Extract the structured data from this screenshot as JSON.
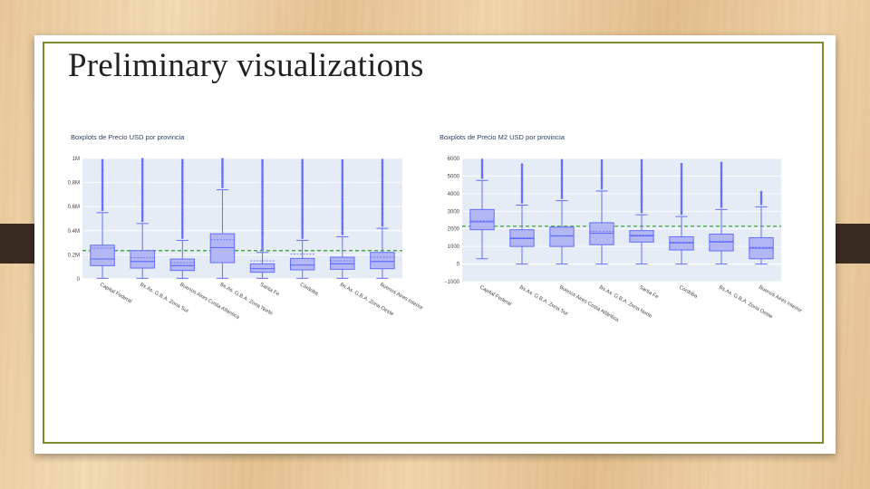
{
  "slide": {
    "title": "Preliminary visualizations"
  },
  "colors": {
    "box_fill": "#b3b8f5",
    "box_line": "#636efa",
    "plot_bg": "#e5ecf6",
    "mean_line": "#2ca02c",
    "frame": "#7f8a2d"
  },
  "chart_data": [
    {
      "type": "box",
      "title": "Boxplots de Precio USD por provincia",
      "xlabel": "",
      "ylabel": "",
      "ylim": [
        0,
        1000000
      ],
      "y_ticks": [
        0,
        200000,
        400000,
        600000,
        800000,
        1000000
      ],
      "y_tick_labels": [
        "0",
        "0.2M",
        "0.4M",
        "0.6M",
        "0.8M",
        "1M"
      ],
      "grid": true,
      "reference_line": {
        "value": 235000,
        "style": "dashed"
      },
      "categories": [
        "Capital Federal",
        "Bs.As. G.B.A. Zona Sur",
        "Buenos Aires Costa Atlántica",
        "Bs.As. G.B.A. Zona Norte",
        "Santa Fe",
        "Córdoba",
        "Bs.As. G.B.A. Zona Oeste",
        "Buenos Aires Interior"
      ],
      "boxes": [
        {
          "min": 5000,
          "q1": 110000,
          "median": 165000,
          "q3": 280000,
          "max": 550000,
          "mean": 255000,
          "outliers_to": 1000000
        },
        {
          "min": 5000,
          "q1": 90000,
          "median": 145000,
          "q3": 235000,
          "max": 460000,
          "mean": 175000,
          "outliers_to": 1000000
        },
        {
          "min": 5000,
          "q1": 70000,
          "median": 110000,
          "q3": 165000,
          "max": 320000,
          "mean": 135000,
          "outliers_to": 1000000
        },
        {
          "min": 5000,
          "q1": 135000,
          "median": 260000,
          "q3": 375000,
          "max": 740000,
          "mean": 325000,
          "outliers_to": 1000000
        },
        {
          "min": 5000,
          "q1": 55000,
          "median": 85000,
          "q3": 125000,
          "max": 220000,
          "mean": 150000,
          "outliers_to": 1000000
        },
        {
          "min": 5000,
          "q1": 75000,
          "median": 115000,
          "q3": 170000,
          "max": 320000,
          "mean": 205000,
          "outliers_to": 1000000
        },
        {
          "min": 5000,
          "q1": 80000,
          "median": 125000,
          "q3": 180000,
          "max": 350000,
          "mean": 150000,
          "outliers_to": 1000000
        },
        {
          "min": 5000,
          "q1": 85000,
          "median": 145000,
          "q3": 220000,
          "max": 420000,
          "mean": 180000,
          "outliers_to": 1000000
        }
      ]
    },
    {
      "type": "box",
      "title": "Boxplots de Precio M2 USD por provincia",
      "xlabel": "",
      "ylabel": "",
      "ylim": [
        -1000,
        6000
      ],
      "y_ticks": [
        -1000,
        0,
        1000,
        2000,
        3000,
        4000,
        5000,
        6000
      ],
      "y_tick_labels": [
        "−1000",
        "0",
        "1000",
        "2000",
        "3000",
        "4000",
        "5000",
        "6000"
      ],
      "grid": true,
      "reference_line": {
        "value": 2150,
        "style": "dashed"
      },
      "categories": [
        "Capital Federal",
        "Bs.As. G.B.A. Zona Sur",
        "Buenos Aires Costa Atlántica",
        "Bs.As. G.B.A. Zona Norte",
        "Santa Fe",
        "Córdoba",
        "Bs.As. G.B.A. Zona Oeste",
        "Buenos Aires Interior"
      ],
      "boxes": [
        {
          "min": 300,
          "q1": 1950,
          "median": 2400,
          "q3": 3100,
          "max": 4750,
          "mean": 2450,
          "outliers_to": 6000
        },
        {
          "min": 0,
          "q1": 1000,
          "median": 1450,
          "q3": 1950,
          "max": 3350,
          "mean": 1500,
          "outliers_to": 5700
        },
        {
          "min": 0,
          "q1": 1000,
          "median": 1600,
          "q3": 2100,
          "max": 3600,
          "mean": 1600,
          "outliers_to": 6000
        },
        {
          "min": 0,
          "q1": 1100,
          "median": 1750,
          "q3": 2350,
          "max": 4150,
          "mean": 1850,
          "outliers_to": 6000
        },
        {
          "min": 0,
          "q1": 1250,
          "median": 1600,
          "q3": 1900,
          "max": 2800,
          "mean": 1650,
          "outliers_to": 6000
        },
        {
          "min": 0,
          "q1": 800,
          "median": 1200,
          "q3": 1550,
          "max": 2700,
          "mean": 1250,
          "outliers_to": 5700
        },
        {
          "min": 0,
          "q1": 750,
          "median": 1250,
          "q3": 1700,
          "max": 3100,
          "mean": 1300,
          "outliers_to": 5800
        },
        {
          "min": 0,
          "q1": 300,
          "median": 900,
          "q3": 1500,
          "max": 3250,
          "mean": 950,
          "outliers_to": 4150
        }
      ]
    }
  ]
}
